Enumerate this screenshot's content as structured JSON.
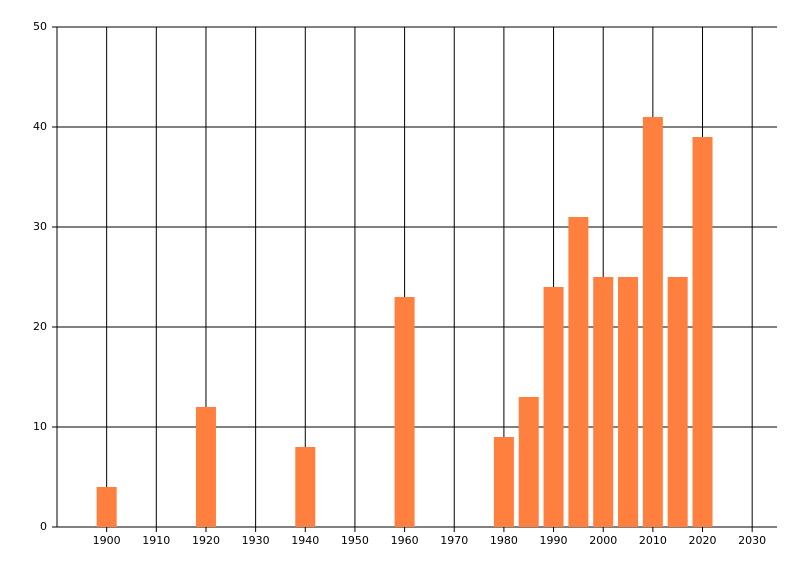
{
  "chart_data": {
    "type": "bar",
    "x": [
      1900,
      1920,
      1940,
      1960,
      1980,
      1985,
      1990,
      1995,
      2000,
      2005,
      2010,
      2015,
      2020
    ],
    "values": [
      4,
      12,
      8,
      23,
      9,
      13,
      24,
      31,
      25,
      25,
      41,
      25,
      39
    ],
    "color": "#ff7f3f",
    "xlim": [
      1890,
      2035
    ],
    "xticks": [
      1900,
      1910,
      1920,
      1930,
      1940,
      1950,
      1960,
      1970,
      1980,
      1990,
      2000,
      2010,
      2020,
      2030
    ],
    "ylim": [
      0,
      50
    ],
    "yticks": [
      0,
      10,
      20,
      30,
      40,
      50
    ],
    "grid": true
  }
}
